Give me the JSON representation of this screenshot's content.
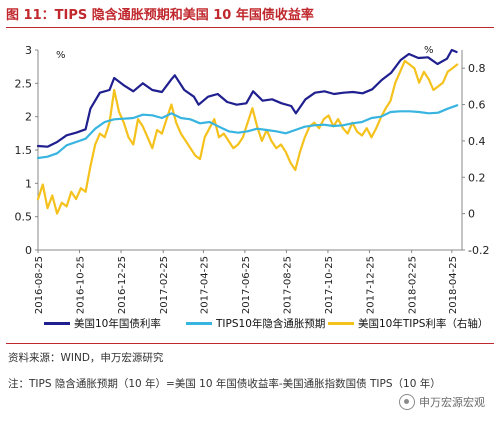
{
  "title": "图 11：TIPS 隐含通胀预期和美国 10 年国债收益率",
  "legend": {
    "s1": "美国10年国债利率",
    "s2": "TIPS10年隐含通胀预期",
    "s3": "美国10年TIPS利率（右轴）"
  },
  "source": "资料来源：WIND，申万宏源研究",
  "note": "注：TIPS 隐含通胀预期（10 年）=美国 10 年国债收益率-美国通胀指数国债 TIPS（10 年）",
  "watermark": "申万宏源宏观",
  "colors": {
    "title": "#c0282d",
    "series1": "#1f1f8f",
    "series2": "#38b4e0",
    "series3": "#f5c11c"
  },
  "chart_data": {
    "type": "line",
    "left_axis": {
      "unit": "%",
      "ylim": [
        0,
        3
      ],
      "ticks": [
        "0",
        "0.5",
        "1",
        "1.5",
        "2",
        "2.5",
        "3"
      ]
    },
    "right_axis": {
      "unit": "%",
      "ylim": [
        -0.2,
        0.9
      ],
      "ticks": [
        "-0.2",
        "0",
        "0.2",
        "0.4",
        "0.6",
        "0.8"
      ]
    },
    "x_ticks": [
      "2016-08-25",
      "2016-10-25",
      "2016-12-25",
      "2017-02-25",
      "2017-04-25",
      "2017-06-25",
      "2017-08-25",
      "2017-10-25",
      "2017-12-25",
      "2018-02-25",
      "2018-04-25"
    ],
    "x_range": [
      "2016-08-25",
      "2018-05-10"
    ],
    "grid": false,
    "legend_position": "bottom",
    "series": [
      {
        "name": "美国10年国债利率",
        "axis": "left",
        "points": [
          [
            "2016-08-25",
            1.56
          ],
          [
            "2016-09-08",
            1.55
          ],
          [
            "2016-09-22",
            1.62
          ],
          [
            "2016-10-06",
            1.72
          ],
          [
            "2016-10-20",
            1.76
          ],
          [
            "2016-11-03",
            1.81
          ],
          [
            "2016-11-10",
            2.12
          ],
          [
            "2016-11-24",
            2.36
          ],
          [
            "2016-12-08",
            2.4
          ],
          [
            "2016-12-15",
            2.58
          ],
          [
            "2016-12-29",
            2.47
          ],
          [
            "2017-01-12",
            2.38
          ],
          [
            "2017-01-26",
            2.5
          ],
          [
            "2017-02-09",
            2.4
          ],
          [
            "2017-02-23",
            2.37
          ],
          [
            "2017-03-09",
            2.56
          ],
          [
            "2017-03-14",
            2.62
          ],
          [
            "2017-03-28",
            2.4
          ],
          [
            "2017-04-11",
            2.3
          ],
          [
            "2017-04-18",
            2.18
          ],
          [
            "2017-05-02",
            2.3
          ],
          [
            "2017-05-16",
            2.34
          ],
          [
            "2017-05-30",
            2.22
          ],
          [
            "2017-06-13",
            2.18
          ],
          [
            "2017-06-27",
            2.2
          ],
          [
            "2017-07-07",
            2.38
          ],
          [
            "2017-07-21",
            2.24
          ],
          [
            "2017-08-04",
            2.26
          ],
          [
            "2017-08-18",
            2.2
          ],
          [
            "2017-09-01",
            2.16
          ],
          [
            "2017-09-08",
            2.05
          ],
          [
            "2017-09-22",
            2.26
          ],
          [
            "2017-10-06",
            2.36
          ],
          [
            "2017-10-20",
            2.38
          ],
          [
            "2017-11-03",
            2.34
          ],
          [
            "2017-11-17",
            2.36
          ],
          [
            "2017-12-01",
            2.37
          ],
          [
            "2017-12-15",
            2.35
          ],
          [
            "2017-12-29",
            2.41
          ],
          [
            "2018-01-12",
            2.55
          ],
          [
            "2018-01-26",
            2.66
          ],
          [
            "2018-02-09",
            2.85
          ],
          [
            "2018-02-21",
            2.94
          ],
          [
            "2018-03-07",
            2.88
          ],
          [
            "2018-03-21",
            2.89
          ],
          [
            "2018-04-04",
            2.79
          ],
          [
            "2018-04-18",
            2.87
          ],
          [
            "2018-04-25",
            3.0
          ],
          [
            "2018-05-02",
            2.97
          ]
        ]
      },
      {
        "name": "TIPS10年隐含通胀预期",
        "axis": "left",
        "points": [
          [
            "2016-08-25",
            1.38
          ],
          [
            "2016-09-08",
            1.4
          ],
          [
            "2016-09-22",
            1.45
          ],
          [
            "2016-10-06",
            1.57
          ],
          [
            "2016-10-20",
            1.62
          ],
          [
            "2016-11-03",
            1.67
          ],
          [
            "2016-11-17",
            1.82
          ],
          [
            "2016-12-01",
            1.92
          ],
          [
            "2016-12-15",
            1.96
          ],
          [
            "2016-12-29",
            1.97
          ],
          [
            "2017-01-12",
            1.98
          ],
          [
            "2017-01-26",
            2.03
          ],
          [
            "2017-02-09",
            2.02
          ],
          [
            "2017-02-23",
            1.98
          ],
          [
            "2017-03-09",
            2.05
          ],
          [
            "2017-03-23",
            1.98
          ],
          [
            "2017-04-06",
            1.96
          ],
          [
            "2017-04-20",
            1.9
          ],
          [
            "2017-05-04",
            1.92
          ],
          [
            "2017-05-18",
            1.85
          ],
          [
            "2017-06-01",
            1.78
          ],
          [
            "2017-06-15",
            1.76
          ],
          [
            "2017-06-29",
            1.78
          ],
          [
            "2017-07-13",
            1.82
          ],
          [
            "2017-07-27",
            1.8
          ],
          [
            "2017-08-10",
            1.78
          ],
          [
            "2017-08-24",
            1.75
          ],
          [
            "2017-09-07",
            1.8
          ],
          [
            "2017-09-21",
            1.85
          ],
          [
            "2017-10-05",
            1.87
          ],
          [
            "2017-10-19",
            1.88
          ],
          [
            "2017-11-02",
            1.86
          ],
          [
            "2017-11-16",
            1.87
          ],
          [
            "2017-11-30",
            1.9
          ],
          [
            "2017-12-14",
            1.92
          ],
          [
            "2017-12-28",
            1.98
          ],
          [
            "2018-01-11",
            2.0
          ],
          [
            "2018-01-25",
            2.07
          ],
          [
            "2018-02-08",
            2.08
          ],
          [
            "2018-02-22",
            2.08
          ],
          [
            "2018-03-08",
            2.07
          ],
          [
            "2018-03-22",
            2.05
          ],
          [
            "2018-04-05",
            2.06
          ],
          [
            "2018-04-19",
            2.12
          ],
          [
            "2018-05-03",
            2.17
          ]
        ]
      },
      {
        "name": "美国10年TIPS利率（右轴）",
        "axis": "right",
        "points": [
          [
            "2016-08-25",
            0.08
          ],
          [
            "2016-09-01",
            0.16
          ],
          [
            "2016-09-08",
            0.03
          ],
          [
            "2016-09-15",
            0.1
          ],
          [
            "2016-09-22",
            0.0
          ],
          [
            "2016-09-29",
            0.06
          ],
          [
            "2016-10-06",
            0.04
          ],
          [
            "2016-10-13",
            0.12
          ],
          [
            "2016-10-20",
            0.08
          ],
          [
            "2016-10-27",
            0.14
          ],
          [
            "2016-11-03",
            0.12
          ],
          [
            "2016-11-10",
            0.26
          ],
          [
            "2016-11-17",
            0.38
          ],
          [
            "2016-11-24",
            0.44
          ],
          [
            "2016-12-01",
            0.42
          ],
          [
            "2016-12-08",
            0.5
          ],
          [
            "2016-12-15",
            0.68
          ],
          [
            "2016-12-22",
            0.56
          ],
          [
            "2016-12-29",
            0.5
          ],
          [
            "2017-01-05",
            0.42
          ],
          [
            "2017-01-12",
            0.38
          ],
          [
            "2017-01-19",
            0.52
          ],
          [
            "2017-01-26",
            0.48
          ],
          [
            "2017-02-02",
            0.42
          ],
          [
            "2017-02-09",
            0.36
          ],
          [
            "2017-02-16",
            0.46
          ],
          [
            "2017-02-23",
            0.44
          ],
          [
            "2017-03-02",
            0.52
          ],
          [
            "2017-03-09",
            0.6
          ],
          [
            "2017-03-16",
            0.5
          ],
          [
            "2017-03-23",
            0.44
          ],
          [
            "2017-03-30",
            0.4
          ],
          [
            "2017-04-06",
            0.36
          ],
          [
            "2017-04-13",
            0.32
          ],
          [
            "2017-04-20",
            0.3
          ],
          [
            "2017-04-27",
            0.42
          ],
          [
            "2017-05-04",
            0.47
          ],
          [
            "2017-05-11",
            0.52
          ],
          [
            "2017-05-18",
            0.42
          ],
          [
            "2017-05-25",
            0.44
          ],
          [
            "2017-06-01",
            0.4
          ],
          [
            "2017-06-08",
            0.36
          ],
          [
            "2017-06-15",
            0.38
          ],
          [
            "2017-06-22",
            0.42
          ],
          [
            "2017-06-29",
            0.5
          ],
          [
            "2017-07-06",
            0.58
          ],
          [
            "2017-07-13",
            0.48
          ],
          [
            "2017-07-20",
            0.4
          ],
          [
            "2017-07-27",
            0.46
          ],
          [
            "2017-08-03",
            0.4
          ],
          [
            "2017-08-10",
            0.36
          ],
          [
            "2017-08-17",
            0.38
          ],
          [
            "2017-08-24",
            0.34
          ],
          [
            "2017-08-31",
            0.28
          ],
          [
            "2017-09-07",
            0.24
          ],
          [
            "2017-09-14",
            0.34
          ],
          [
            "2017-09-21",
            0.42
          ],
          [
            "2017-09-28",
            0.48
          ],
          [
            "2017-10-05",
            0.5
          ],
          [
            "2017-10-12",
            0.47
          ],
          [
            "2017-10-19",
            0.52
          ],
          [
            "2017-10-26",
            0.54
          ],
          [
            "2017-11-02",
            0.48
          ],
          [
            "2017-11-09",
            0.52
          ],
          [
            "2017-11-16",
            0.47
          ],
          [
            "2017-11-23",
            0.44
          ],
          [
            "2017-11-30",
            0.5
          ],
          [
            "2017-12-07",
            0.45
          ],
          [
            "2017-12-14",
            0.43
          ],
          [
            "2017-12-21",
            0.47
          ],
          [
            "2017-12-28",
            0.42
          ],
          [
            "2018-01-04",
            0.47
          ],
          [
            "2018-01-11",
            0.53
          ],
          [
            "2018-01-18",
            0.58
          ],
          [
            "2018-01-25",
            0.62
          ],
          [
            "2018-02-01",
            0.72
          ],
          [
            "2018-02-08",
            0.78
          ],
          [
            "2018-02-15",
            0.84
          ],
          [
            "2018-02-22",
            0.82
          ],
          [
            "2018-03-01",
            0.8
          ],
          [
            "2018-03-08",
            0.72
          ],
          [
            "2018-03-15",
            0.78
          ],
          [
            "2018-03-22",
            0.74
          ],
          [
            "2018-03-29",
            0.68
          ],
          [
            "2018-04-05",
            0.7
          ],
          [
            "2018-04-12",
            0.72
          ],
          [
            "2018-04-19",
            0.78
          ],
          [
            "2018-04-26",
            0.8
          ],
          [
            "2018-05-03",
            0.82
          ]
        ]
      }
    ]
  }
}
